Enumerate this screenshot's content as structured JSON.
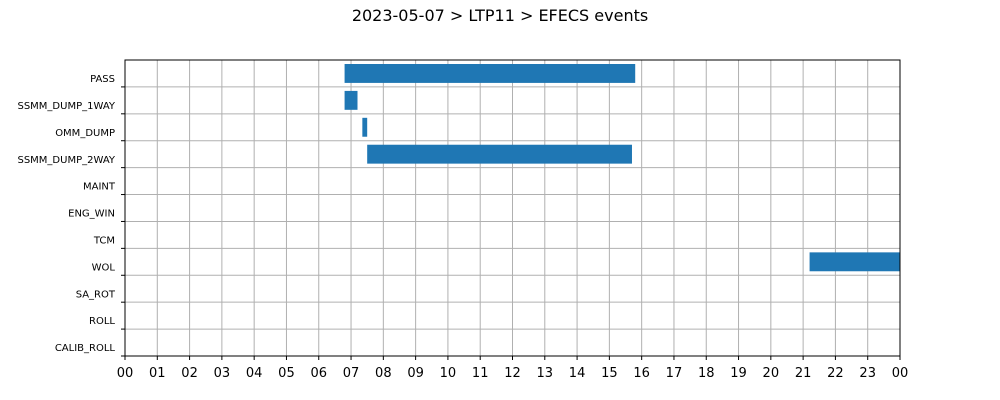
{
  "chart_data": {
    "type": "gantt",
    "title": "2023-05-07 > LTP11 > EFECS events",
    "xlabel": "",
    "ylabel": "",
    "xlim": [
      0,
      24
    ],
    "x_ticks": [
      "00",
      "01",
      "02",
      "03",
      "04",
      "05",
      "06",
      "07",
      "08",
      "09",
      "10",
      "11",
      "12",
      "13",
      "14",
      "15",
      "16",
      "17",
      "18",
      "19",
      "20",
      "21",
      "22",
      "23",
      "00"
    ],
    "categories": [
      "PASS",
      "SSMM_DUMP_1WAY",
      "OMM_DUMP",
      "SSMM_DUMP_2WAY",
      "MAINT",
      "ENG_WIN",
      "TCM",
      "WOL",
      "SA_ROT",
      "ROLL",
      "CALIB_ROLL"
    ],
    "grid": true,
    "bar_color": "#1f77b4",
    "events": [
      {
        "category": "PASS",
        "start": 6.8,
        "end": 15.8
      },
      {
        "category": "SSMM_DUMP_1WAY",
        "start": 6.8,
        "end": 7.2
      },
      {
        "category": "OMM_DUMP",
        "start": 7.35,
        "end": 7.5
      },
      {
        "category": "SSMM_DUMP_2WAY",
        "start": 7.5,
        "end": 15.7
      },
      {
        "category": "WOL",
        "start": 21.2,
        "end": 24.0
      }
    ]
  }
}
